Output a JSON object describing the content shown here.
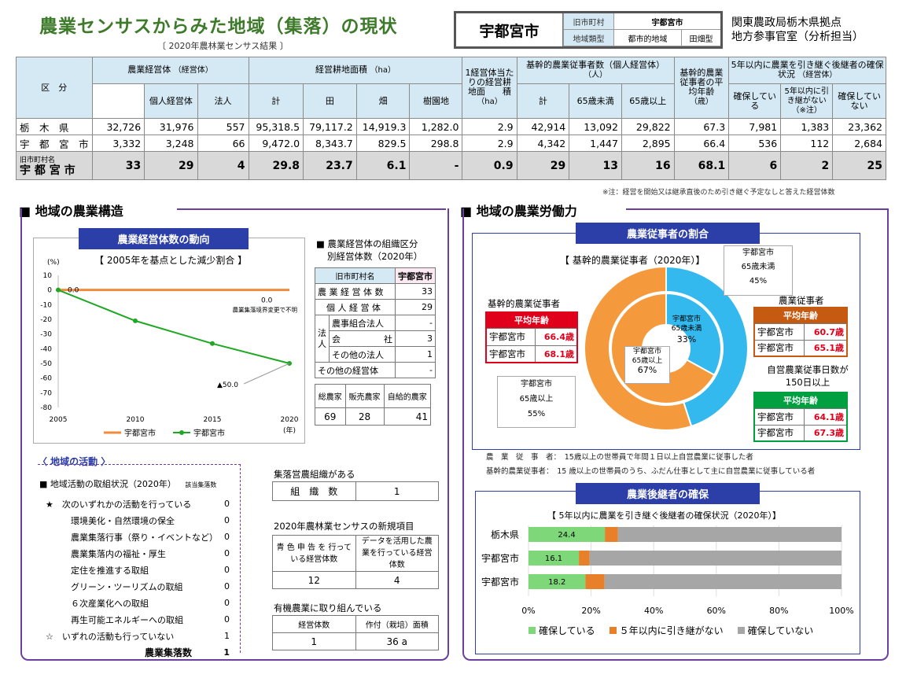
{
  "header": {
    "title": "農業センサスからみた地域（集落）の現状",
    "subtitle": "〔 2020年農林業センサス結果 〕",
    "city_name": "宇都宮市",
    "former_label": "旧市町村",
    "former_value": "宇都宮市",
    "type_label": "地域類型",
    "type_value1": "都市的地域",
    "type_value2": "田畑型",
    "office_line1": "関東農政局栃木県拠点",
    "office_line2": "地方参事官室（分析担当）"
  },
  "summary": {
    "h_kubun": "区　分",
    "h_mgmt": "農業経営体",
    "h_mgmt_unit": "（経営体）",
    "h_indiv": "個人経営体",
    "h_corp": "法人",
    "h_land": "経営耕地面積",
    "h_land_unit": "（ha）",
    "h_total": "計",
    "h_paddy": "田",
    "h_field": "畑",
    "h_orchard": "樹園地",
    "h_per": "1経営体当たりの経営耕地面　　積",
    "h_per_unit": "（ha）",
    "h_core": "基幹的農業従事者数（個人経営体）",
    "h_core_unit": "（人）",
    "h_core_total": "計",
    "h_under65": "65歳未満",
    "h_over65": "65歳以上",
    "h_avgage": "基幹的農業従事者の平均年齢",
    "h_avgage_unit": "（歳）",
    "h_succ": "5年以内に農業を引き継ぐ後継者の確保状況",
    "h_succ_unit": "（経営体）",
    "h_secured": "確保している",
    "h_none5": "5年以内に引き継がない　（※注）",
    "h_notsecured": "確保していない",
    "rows": [
      {
        "label": "栃　木　県",
        "v": [
          "32,726",
          "31,976",
          "557",
          "95,318.5",
          "79,117.2",
          "14,919.3",
          "1,282.0",
          "2.9",
          "42,914",
          "13,092",
          "29,822",
          "67.3",
          "7,981",
          "1,383",
          "23,362"
        ]
      },
      {
        "label": "宇　都　宮　市",
        "v": [
          "3,332",
          "3,248",
          "66",
          "9,472.0",
          "8,343.7",
          "829.5",
          "298.8",
          "2.9",
          "4,342",
          "1,447",
          "2,895",
          "66.4",
          "536",
          "112",
          "2,684"
        ]
      }
    ],
    "local_caption": "旧市町村名",
    "local_label": "宇 都 宮 市",
    "local_values": [
      "33",
      "29",
      "4",
      "29.8",
      "23.7",
      "6.1",
      "-",
      "0.9",
      "29",
      "13",
      "16",
      "68.1",
      "6",
      "2",
      "25"
    ],
    "note": "※注：経営を開始又は継承直後のため引き継ぐ予定なしと答えた経営体数"
  },
  "structure": {
    "section_title": "■ 地域の農業構造",
    "chart_title": "農業経営体数の動向",
    "chart_subtitle": "【 2005年を基点とした減少割合 】",
    "y_unit": "(%)",
    "x_unit": "(年)",
    "annot_pref": "0.0",
    "annot_city": "0.0",
    "annot_boundary": "農業集落境界変更で不明",
    "annot_last": "▲50.0",
    "legend1": "宇都宮市",
    "legend2": "宇都宮市",
    "org_title1": "■ 農業経営体の組織区分",
    "org_title2": "別経営体数（2020年）",
    "org_h1": "旧市町村名",
    "org_h2": "宇都宮市",
    "org_rows": [
      {
        "label": "農 業 経 営 体 数",
        "value": "33"
      },
      {
        "label": "個 人 経 営 体",
        "value": "29"
      },
      {
        "label": "農事組合法人",
        "value": "-"
      },
      {
        "label": "会　　　　　社",
        "value": "3"
      },
      {
        "label": "その他の法人",
        "value": "1"
      },
      {
        "label": "その他の経営体",
        "value": "-"
      }
    ],
    "org_corp": "法人",
    "farm_h": [
      "総農家",
      "販売農家",
      "自給的農家"
    ],
    "farm_v": [
      "69",
      "28",
      "41"
    ]
  },
  "chart_data": {
    "type": "line",
    "x": [
      2005,
      2010,
      2015,
      2020
    ],
    "ylim": [
      -80,
      10
    ],
    "yticks": [
      10,
      0,
      -10,
      -20,
      -30,
      -40,
      -50,
      -60,
      -70,
      -80
    ],
    "series": [
      {
        "name": "宇都宮市",
        "color": "#f08c3c",
        "values": [
          0,
          0,
          0,
          0
        ]
      },
      {
        "name": "宇都宮市",
        "color": "#1fa824",
        "values": [
          0,
          -21,
          -36.5,
          -50
        ]
      }
    ],
    "xlabel": "",
    "ylabel": "(%)"
  },
  "activities": {
    "title": "〈 地域の活動 〉",
    "sub": "■ 地域活動の取組状況（2020年）",
    "unit": "該当集落数",
    "items": [
      {
        "label": "★　次のいずれかの活動を行っている",
        "value": "0"
      },
      {
        "label": "環境美化・自然環境の保全",
        "value": "0"
      },
      {
        "label": "農業集落行事（祭り・イベントなど）",
        "value": "0"
      },
      {
        "label": "農業集落内の福祉・厚生",
        "value": "0"
      },
      {
        "label": "定住を推進する取組",
        "value": "0"
      },
      {
        "label": "グリーン・ツーリズムの取組",
        "value": "0"
      },
      {
        "label": "６次産業化への取組",
        "value": "0"
      },
      {
        "label": "再生可能エネルギーへの取組",
        "value": "0"
      },
      {
        "label": "☆　いずれの活動も行っていない",
        "value": "1"
      },
      {
        "label": "農業集落数",
        "value": "1"
      }
    ],
    "org_title": "集落営農組織がある",
    "org_label": "組　織　数",
    "org_value": "1",
    "new_title": "2020年農林業センサスの新規項目",
    "new_h1": "青 色 申 告 を 行っている経営体数",
    "new_h2": "データを活用した農業を行っている経営体数",
    "new_v1": "12",
    "new_v2": "4",
    "organic_title": "有機農業に取り組んでいる",
    "organic_h1": "経営体数",
    "organic_h2": "作付（栽培）面積",
    "organic_v1": "1",
    "organic_v2": "36 a"
  },
  "labor": {
    "section_title": "■ 地域の農業労働力",
    "chart_title": "農業従事者の割合",
    "donut_subtitle": "【 基幹的農業従事者（2020年）】",
    "outer_top_label": "宇都宮市",
    "outer_top_sub": "65歳未満",
    "outer_top_pct": "45%",
    "outer_bot_label": "宇都宮市",
    "outer_bot_sub": "65歳以上",
    "outer_bot_pct": "55%",
    "inner_top_label": "宇都宮市",
    "inner_top_sub": "65歳未満",
    "inner_top_pct": "33%",
    "inner_bot_label": "宇都宮市",
    "inner_bot_sub": "65歳以上",
    "inner_bot_pct": "67%",
    "donut_outer": [
      45,
      55
    ],
    "donut_inner": [
      33,
      67
    ],
    "core_title": "基幹的農業従事者",
    "avg_label": "平均年齢",
    "core_rows": [
      {
        "label": "宇都宮市",
        "value": "66.4歳"
      },
      {
        "label": "宇都宮市",
        "value": "68.1歳"
      }
    ],
    "workers_title": "農業従事者",
    "workers_rows": [
      {
        "label": "宇都宮市",
        "value": "60.7歳"
      },
      {
        "label": "宇都宮市",
        "value": "65.1歳"
      }
    ],
    "days_title1": "自営農業従事日数が",
    "days_title2": "150日以上",
    "days_rows": [
      {
        "label": "宇都宮市",
        "value": "64.1歳"
      },
      {
        "label": "宇都宮市",
        "value": "67.3歳"
      }
    ],
    "def1": "農　業　従　事　者：　15歳以上の世帯員で年間１日以上自営農業に従事した者",
    "def2": "基幹的農業従事者：　15 歳以上の世帯員のうち、ふだん仕事として主に自営農業に従事している者",
    "succ_title": "農業後継者の確保",
    "succ_subtitle": "【 5年以内に農業を引き継ぐ後継者の確保状況（2020年）】",
    "bars": [
      {
        "label": "栃木県",
        "secured": 24.4,
        "none5": 4.2,
        "not": 71.4,
        "text": "24.4"
      },
      {
        "label": "宇都宮市",
        "secured": 16.1,
        "none5": 3.4,
        "not": 80.5,
        "text": "16.1"
      },
      {
        "label": "宇都宮市",
        "secured": 18.2,
        "none5": 6.1,
        "not": 75.7,
        "text": "18.2"
      }
    ],
    "xticks": [
      "0%",
      "20%",
      "40%",
      "60%",
      "80%",
      "100%"
    ],
    "leg1": "確保している",
    "leg2": "５年以内に引き継がない",
    "leg3": "確保していない",
    "colors": {
      "secured": "#7ed87a",
      "none5": "#e8802a",
      "not": "#a6a6a6"
    }
  }
}
